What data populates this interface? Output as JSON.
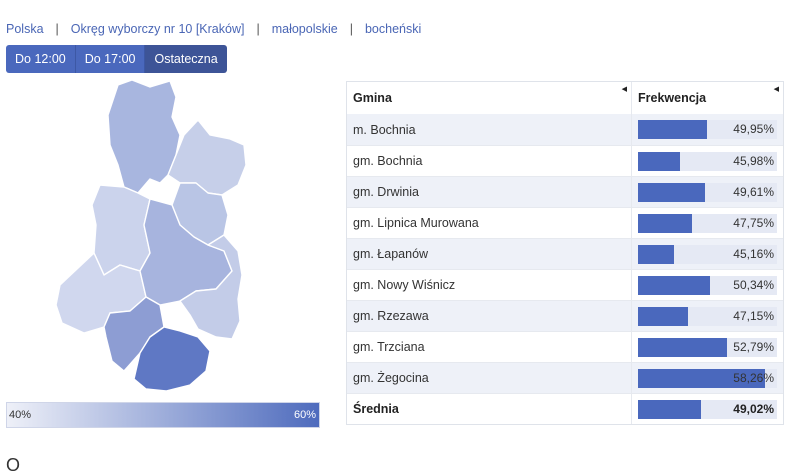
{
  "breadcrumb": [
    "Polska",
    "Okręg wyborczy nr 10 [Kraków]",
    "małopolskie",
    "bocheński"
  ],
  "tabs": [
    {
      "label": "Do 12:00",
      "active": false
    },
    {
      "label": "Do 17:00",
      "active": false
    },
    {
      "label": "Ostateczna",
      "active": true
    }
  ],
  "scale": {
    "min": "40%",
    "max": "60%"
  },
  "table": {
    "headers": {
      "gmina": "Gmina",
      "frekwencja": "Frekwencja"
    },
    "rows": [
      {
        "gmina": "m. Bochnia",
        "value": 49.95,
        "label": "49,95%"
      },
      {
        "gmina": "gm. Bochnia",
        "value": 45.98,
        "label": "45,98%"
      },
      {
        "gmina": "gm. Drwinia",
        "value": 49.61,
        "label": "49,61%"
      },
      {
        "gmina": "gm. Lipnica Murowana",
        "value": 47.75,
        "label": "47,75%"
      },
      {
        "gmina": "gm. Łapanów",
        "value": 45.16,
        "label": "45,16%"
      },
      {
        "gmina": "gm. Nowy Wiśnicz",
        "value": 50.34,
        "label": "50,34%"
      },
      {
        "gmina": "gm. Rzezawa",
        "value": 47.15,
        "label": "47,15%"
      },
      {
        "gmina": "gm. Trzciana",
        "value": 52.79,
        "label": "52,79%"
      },
      {
        "gmina": "gm. Żegocina",
        "value": 58.26,
        "label": "58,26%"
      }
    ],
    "average": {
      "gmina": "Średnia",
      "value": 49.02,
      "label": "49,02%"
    }
  },
  "colors": {
    "accent": "#4a68bd",
    "accent_dark": "#3d5497",
    "row_alt": "#eef1f8"
  },
  "footer_fragment": "O"
}
